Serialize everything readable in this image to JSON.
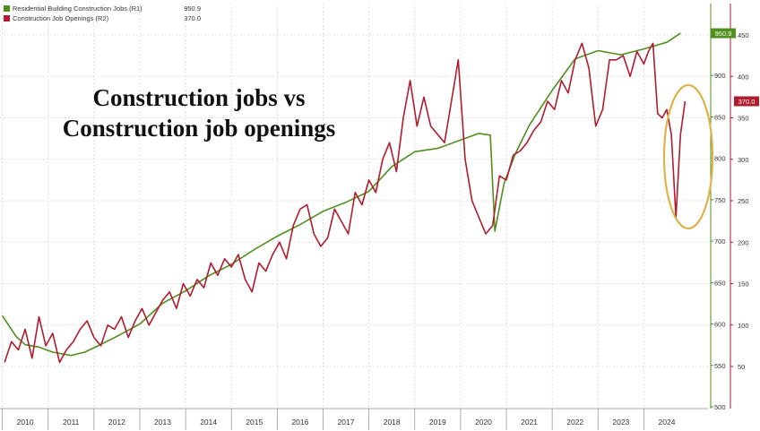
{
  "headline": {
    "line1": "Construction jobs vs",
    "line2": "Construction job openings"
  },
  "legend": [
    {
      "name": "Residential Building Construction Jobs (R1)",
      "value": "950.9"
    },
    {
      "name": "Construction Job Openings (R2)",
      "value": "370.0"
    }
  ],
  "colors": {
    "jobs": "#4f8f1e",
    "openings": "#b01c2e",
    "highlight_circle": "#e0b24a",
    "grid": "#d9d9d9"
  },
  "chart_data": {
    "type": "line",
    "x_ticks": [
      "2010",
      "2011",
      "2012",
      "2013",
      "2014",
      "2015",
      "2016",
      "2017",
      "2018",
      "2019",
      "2020",
      "2021",
      "2022",
      "2023",
      "2024"
    ],
    "y_right_r1": {
      "ticks": [
        500,
        550,
        600,
        650,
        700,
        750,
        800,
        850,
        900,
        950
      ]
    },
    "y_right_r2": {
      "ticks": [
        50,
        100,
        150,
        200,
        250,
        300,
        350,
        400,
        450
      ]
    },
    "last_value_tags": {
      "r1": "950.9",
      "r2": "370.0"
    },
    "series": [
      {
        "name": "Residential Building Construction Jobs (R1)",
        "axis": "r1",
        "x": [
          2009.5,
          2009.8,
          2010.0,
          2010.3,
          2010.6,
          2011.0,
          2011.3,
          2011.6,
          2012.0,
          2012.5,
          2013.0,
          2013.5,
          2014.0,
          2014.5,
          2015.0,
          2015.5,
          2016.0,
          2016.5,
          2017.0,
          2017.5,
          2018.0,
          2018.5,
          2019.0,
          2019.5,
          2019.9,
          2020.15,
          2020.25,
          2020.45,
          2020.7,
          2021.0,
          2021.5,
          2022.0,
          2022.5,
          2023.0,
          2023.5,
          2024.0,
          2024.3
        ],
        "values": [
          610,
          585,
          575,
          572,
          566,
          562,
          566,
          574,
          585,
          600,
          625,
          640,
          658,
          672,
          690,
          706,
          720,
          736,
          747,
          760,
          790,
          808,
          812,
          822,
          830,
          828,
          712,
          770,
          806,
          840,
          882,
          920,
          930,
          925,
          932,
          940,
          951
        ]
      },
      {
        "name": "Construction Job Openings (R2)",
        "axis": "r2",
        "x": [
          2009.55,
          2009.7,
          2009.85,
          2010.0,
          2010.15,
          2010.3,
          2010.45,
          2010.6,
          2010.75,
          2010.9,
          2011.05,
          2011.2,
          2011.35,
          2011.5,
          2011.65,
          2011.8,
          2011.95,
          2012.1,
          2012.25,
          2012.4,
          2012.55,
          2012.7,
          2012.85,
          2013.0,
          2013.15,
          2013.3,
          2013.45,
          2013.6,
          2013.75,
          2013.9,
          2014.05,
          2014.2,
          2014.35,
          2014.5,
          2014.65,
          2014.8,
          2014.95,
          2015.1,
          2015.25,
          2015.4,
          2015.55,
          2015.7,
          2015.85,
          2016.0,
          2016.15,
          2016.3,
          2016.45,
          2016.6,
          2016.75,
          2016.9,
          2017.05,
          2017.2,
          2017.35,
          2017.5,
          2017.65,
          2017.8,
          2017.95,
          2018.1,
          2018.25,
          2018.4,
          2018.55,
          2018.7,
          2018.85,
          2019.0,
          2019.15,
          2019.3,
          2019.45,
          2019.6,
          2019.75,
          2019.9,
          2020.05,
          2020.2,
          2020.35,
          2020.5,
          2020.65,
          2020.8,
          2020.95,
          2021.1,
          2021.25,
          2021.4,
          2021.55,
          2021.7,
          2021.85,
          2022.0,
          2022.15,
          2022.3,
          2022.45,
          2022.6,
          2022.75,
          2022.9,
          2023.05,
          2023.2,
          2023.35,
          2023.5,
          2023.6,
          2023.7,
          2023.8,
          2023.9,
          2024.0,
          2024.1,
          2024.2,
          2024.3,
          2024.4
        ],
        "values": [
          55,
          80,
          70,
          95,
          60,
          110,
          75,
          90,
          55,
          70,
          80,
          95,
          105,
          85,
          75,
          100,
          95,
          110,
          85,
          105,
          120,
          100,
          115,
          130,
          140,
          120,
          150,
          135,
          155,
          145,
          175,
          160,
          180,
          170,
          185,
          155,
          140,
          175,
          165,
          185,
          200,
          180,
          220,
          240,
          245,
          210,
          195,
          205,
          240,
          225,
          210,
          260,
          245,
          275,
          260,
          300,
          320,
          285,
          350,
          395,
          340,
          375,
          340,
          330,
          320,
          370,
          420,
          300,
          250,
          230,
          210,
          220,
          280,
          275,
          305,
          310,
          320,
          335,
          345,
          370,
          360,
          395,
          380,
          420,
          440,
          410,
          340,
          360,
          420,
          420,
          425,
          400,
          430,
          415,
          430,
          440,
          355,
          350,
          360,
          330,
          230,
          330,
          370
        ]
      }
    ],
    "annotation": "circle highlighting 2024 drop in job openings"
  }
}
